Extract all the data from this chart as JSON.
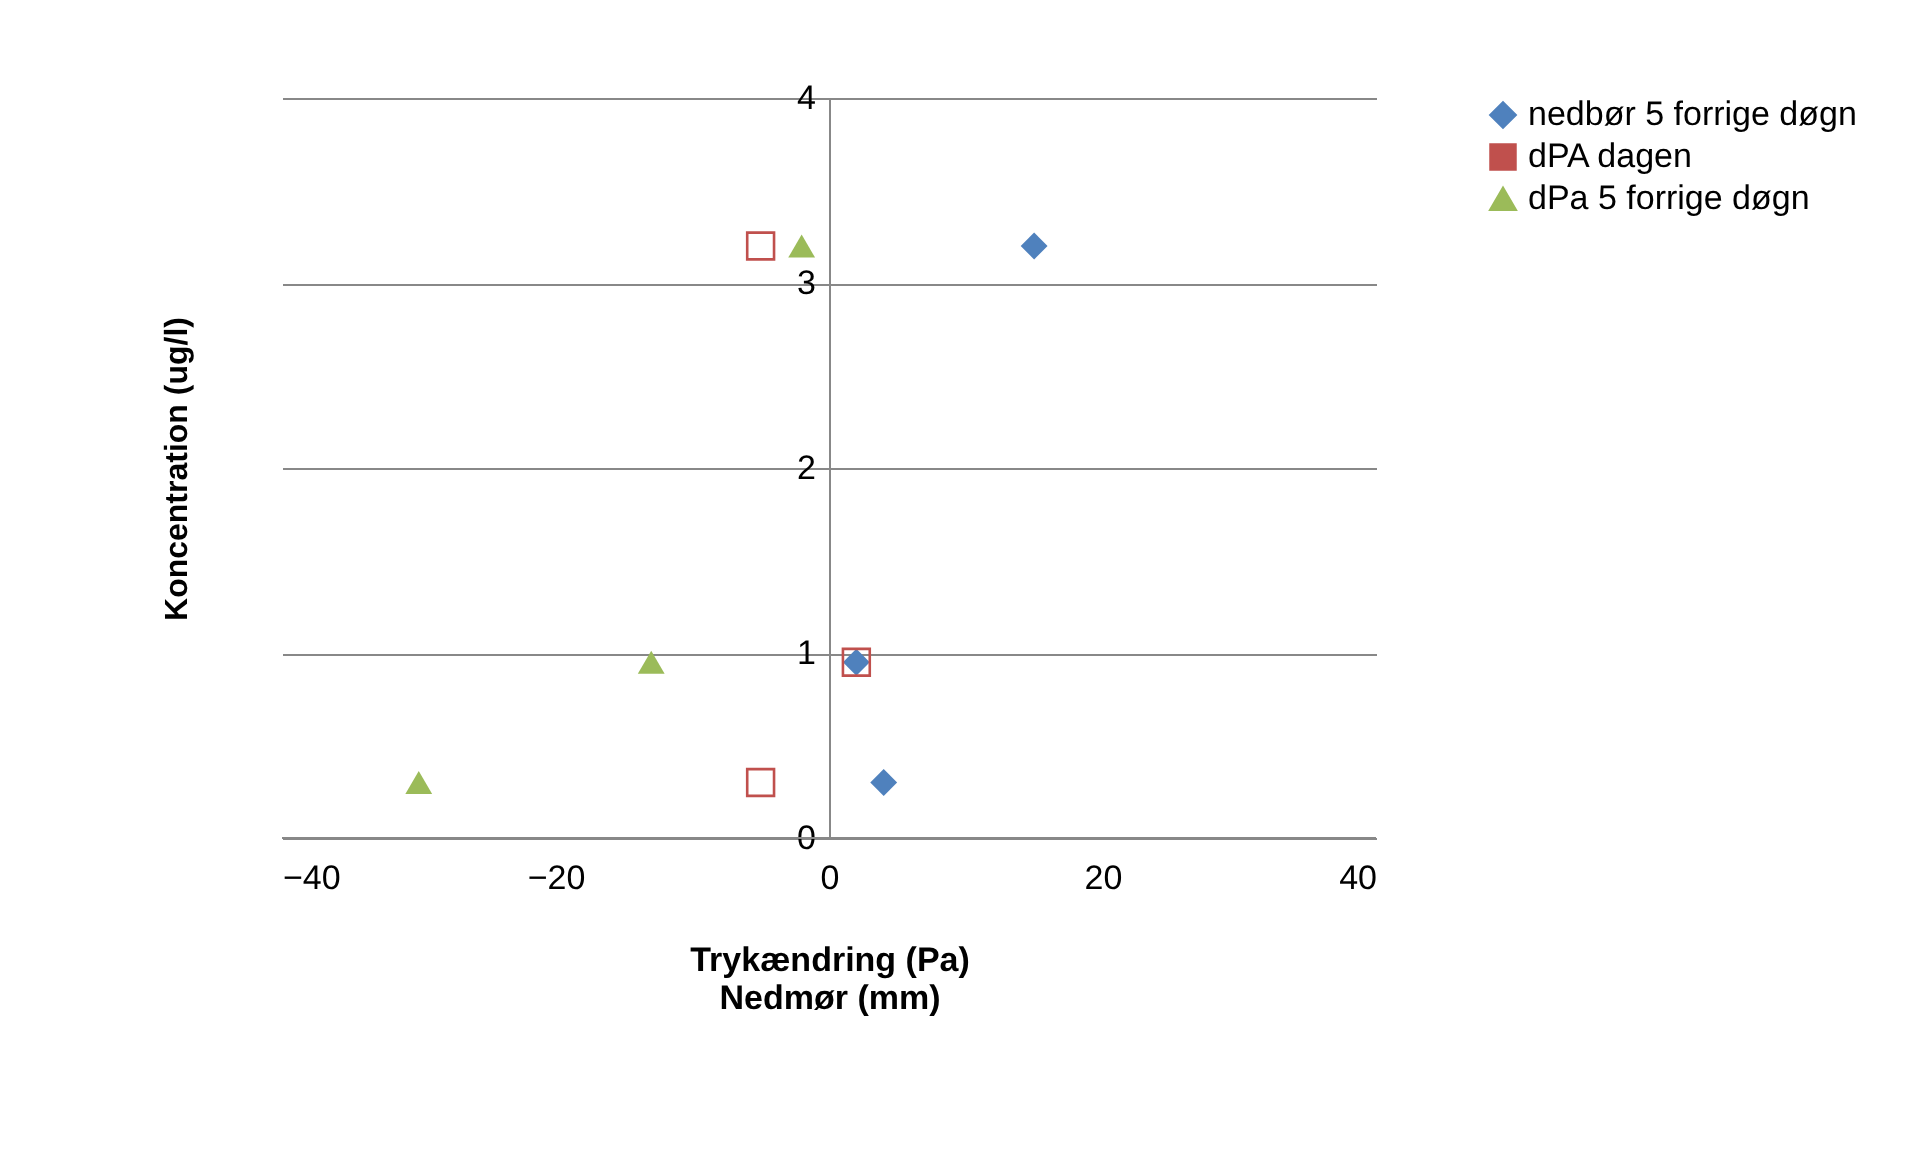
{
  "chart_data": {
    "type": "scatter",
    "xlabel": "Trykændring (Pa)\nNedmør (mm)",
    "ylabel": "Koncentration (ug/l)",
    "xlim": [
      -40,
      40
    ],
    "xticks": [
      -40,
      -20,
      0,
      20,
      40
    ],
    "ylim": [
      0,
      4
    ],
    "yticks": [
      0,
      1,
      2,
      3,
      4
    ],
    "grid": "y",
    "legend": "right",
    "series": [
      {
        "name": "nedbør 5 forrige døgn",
        "color": "#4f81bd",
        "marker": "diamond",
        "x": [
          15,
          2,
          4
        ],
        "values": [
          3.2,
          0.95,
          0.3
        ]
      },
      {
        "name": "dPA dagen",
        "color": "#c0504d",
        "marker": "square",
        "x": [
          -5,
          2,
          -5
        ],
        "values": [
          3.2,
          0.95,
          0.3
        ]
      },
      {
        "name": "dPa 5 forrige døgn",
        "color": "#9bbb59",
        "marker": "triangle",
        "x": [
          -2,
          -13,
          -30
        ],
        "values": [
          3.2,
          0.95,
          0.3
        ]
      }
    ]
  }
}
